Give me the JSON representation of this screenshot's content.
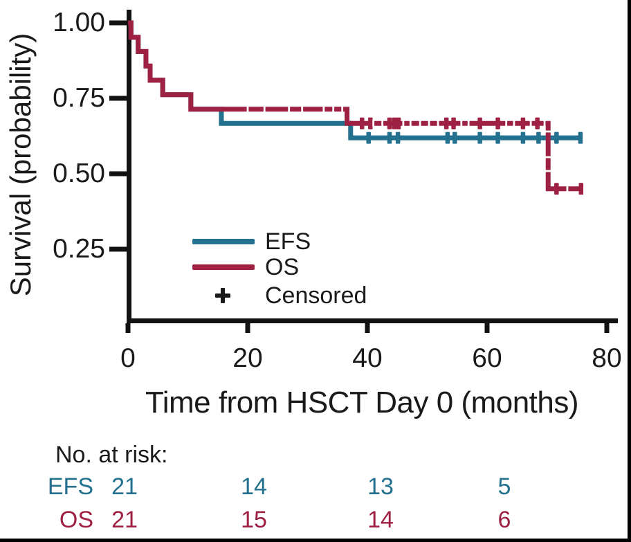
{
  "colors": {
    "efs_blue": "#24708F",
    "os_red": "#9E2143",
    "axis_black": "#121212",
    "text_black": "#1a1a1a",
    "background": "#ffffff"
  },
  "chart_data": {
    "type": "line",
    "subtype": "kaplan-meier-step",
    "title": "",
    "xlabel": "Time from HSCT Day 0 (months)",
    "ylabel": "Survival (probability)",
    "xlim": [
      0,
      82
    ],
    "ylim": [
      0,
      1.04
    ],
    "xticks": [
      0,
      20,
      40,
      60,
      80
    ],
    "ytick_labels": [
      "1.00",
      "0.75",
      "0.50",
      "0.25"
    ],
    "ytick_values": [
      1.0,
      0.75,
      0.5,
      0.25
    ],
    "grid": false,
    "legend_position": "inside-lower-center",
    "series": [
      {
        "name": "EFS",
        "color": "#24708F",
        "steps": [
          [
            0,
            1.0
          ],
          [
            0.5,
            0.952
          ],
          [
            1.7,
            0.905
          ],
          [
            3.0,
            0.857
          ],
          [
            3.7,
            0.81
          ],
          [
            5.8,
            0.762
          ],
          [
            10.5,
            0.714
          ],
          [
            15.6,
            0.667
          ],
          [
            37.2,
            0.619
          ]
        ],
        "end_time": 75.9,
        "censor_marks": [
          [
            40.2,
            0.619
          ],
          [
            43.7,
            0.619
          ],
          [
            45.1,
            0.619
          ],
          [
            53.4,
            0.619
          ],
          [
            54.6,
            0.619
          ],
          [
            58.8,
            0.619
          ],
          [
            61.8,
            0.619
          ],
          [
            66.0,
            0.619
          ],
          [
            68.6,
            0.619
          ],
          [
            71.6,
            0.619
          ],
          [
            75.6,
            0.619
          ]
        ]
      },
      {
        "name": "OS",
        "color": "#9E2143",
        "steps": [
          [
            0,
            1.0
          ],
          [
            0.5,
            0.952
          ],
          [
            1.7,
            0.905
          ],
          [
            3.0,
            0.857
          ],
          [
            3.7,
            0.81
          ],
          [
            5.8,
            0.762
          ],
          [
            10.5,
            0.714
          ],
          [
            36.6,
            0.667
          ],
          [
            70.2,
            0.45
          ]
        ],
        "end_time": 75.8,
        "censor_marks": [
          [
            39.1,
            0.667
          ],
          [
            40.5,
            0.667
          ],
          [
            43.7,
            0.667
          ],
          [
            44.5,
            0.667
          ],
          [
            45.2,
            0.667
          ],
          [
            53.2,
            0.667
          ],
          [
            54.4,
            0.667
          ],
          [
            58.8,
            0.667
          ],
          [
            61.8,
            0.667
          ],
          [
            66.0,
            0.667
          ],
          [
            68.4,
            0.667
          ],
          [
            71.6,
            0.45
          ],
          [
            75.7,
            0.45
          ]
        ],
        "line_gaps_horizontal": [
          {
            "p": 0.714,
            "times": [
              20.0,
              22.8,
              26.9,
              29.1,
              32.7,
              34.3,
              35.8
            ]
          },
          {
            "p": 0.667,
            "times": [
              41.0,
              42.5,
              46.0,
              47.2,
              48.8,
              50.3,
              51.8,
              55.7,
              56.9,
              63.2,
              64.5,
              67.3,
              69.6
            ]
          },
          {
            "p": 0.45,
            "times": [
              73.4
            ]
          }
        ],
        "line_gaps_vertical": [
          {
            "time": 70.2,
            "probs": [
              0.64,
              0.555,
              0.509
            ]
          }
        ]
      }
    ],
    "legend": {
      "efs_label": "EFS",
      "os_label": "OS",
      "censored_label": "Censored",
      "censored_marker": "+"
    },
    "risk_table": {
      "title": "No. at risk:",
      "time_points": [
        0,
        20,
        40,
        60
      ],
      "rows": [
        {
          "label": "EFS",
          "color": "#24708F",
          "values": [
            "21",
            "14",
            "13",
            "5"
          ]
        },
        {
          "label": "OS",
          "color": "#9E2143",
          "values": [
            "21",
            "15",
            "14",
            "6"
          ]
        }
      ]
    }
  }
}
